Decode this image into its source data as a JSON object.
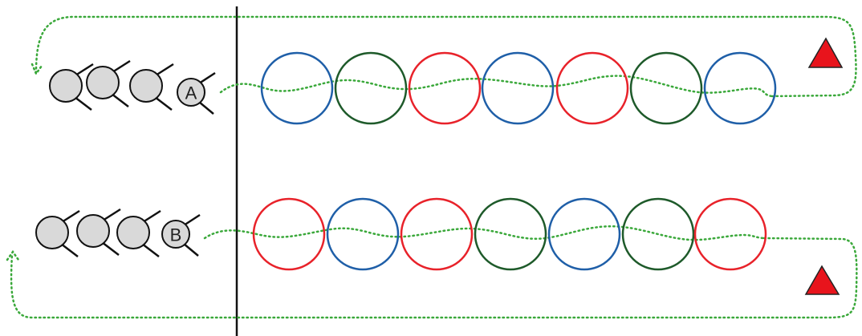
{
  "rows": [
    {
      "label": "A"
    },
    {
      "label": "B"
    }
  ]
}
